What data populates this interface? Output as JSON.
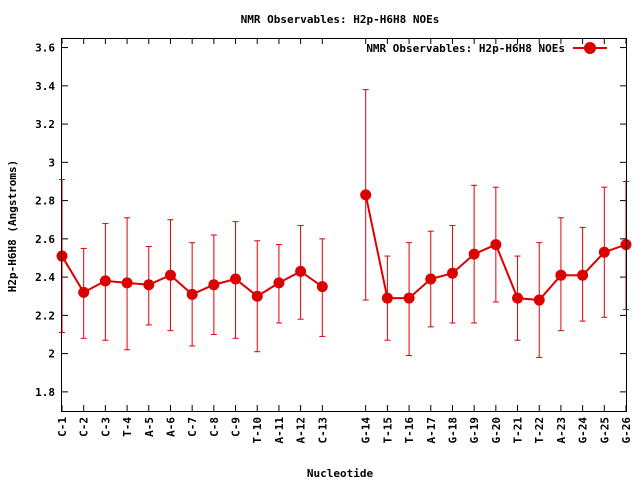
{
  "chart_data": {
    "type": "line",
    "title": "NMR Observables: H2p-H6H8 NOEs",
    "xlabel": "Nucleotide",
    "ylabel": "H2p-H6H8 (Angstroms)",
    "ylim": [
      1.7,
      3.65
    ],
    "yticks": [
      "1.8",
      "2",
      "2.2",
      "2.4",
      "2.6",
      "2.8",
      "3",
      "3.2",
      "3.4",
      "3.6"
    ],
    "legend_position": "top-right",
    "color": "#dd0000",
    "series": [
      {
        "name": "NMR Observables: H2p-H6H8 NOEs",
        "segments": [
          [
            {
              "x": 1,
              "label": "C-1",
              "y": 2.51,
              "lo": 2.11,
              "hi": 2.91
            },
            {
              "x": 2,
              "label": "C-2",
              "y": 2.32,
              "lo": 2.08,
              "hi": 2.55
            },
            {
              "x": 3,
              "label": "C-3",
              "y": 2.38,
              "lo": 2.07,
              "hi": 2.68
            },
            {
              "x": 4,
              "label": "T-4",
              "y": 2.37,
              "lo": 2.02,
              "hi": 2.71
            },
            {
              "x": 5,
              "label": "A-5",
              "y": 2.36,
              "lo": 2.15,
              "hi": 2.56
            },
            {
              "x": 6,
              "label": "A-6",
              "y": 2.41,
              "lo": 2.12,
              "hi": 2.7
            },
            {
              "x": 7,
              "label": "C-7",
              "y": 2.31,
              "lo": 2.04,
              "hi": 2.58
            },
            {
              "x": 8,
              "label": "C-8",
              "y": 2.36,
              "lo": 2.1,
              "hi": 2.62
            },
            {
              "x": 9,
              "label": "C-9",
              "y": 2.39,
              "lo": 2.08,
              "hi": 2.69
            },
            {
              "x": 10,
              "label": "T-10",
              "y": 2.3,
              "lo": 2.01,
              "hi": 2.59
            },
            {
              "x": 11,
              "label": "A-11",
              "y": 2.37,
              "lo": 2.16,
              "hi": 2.57
            },
            {
              "x": 12,
              "label": "A-12",
              "y": 2.43,
              "lo": 2.18,
              "hi": 2.67
            },
            {
              "x": 13,
              "label": "C-13",
              "y": 2.35,
              "lo": 2.09,
              "hi": 2.6
            }
          ],
          [
            {
              "x": 15,
              "label": "G-14",
              "y": 2.83,
              "lo": 2.28,
              "hi": 3.38
            },
            {
              "x": 16,
              "label": "T-15",
              "y": 2.29,
              "lo": 2.07,
              "hi": 2.51
            },
            {
              "x": 17,
              "label": "T-16",
              "y": 2.29,
              "lo": 1.99,
              "hi": 2.58
            },
            {
              "x": 18,
              "label": "A-17",
              "y": 2.39,
              "lo": 2.14,
              "hi": 2.64
            },
            {
              "x": 19,
              "label": "G-18",
              "y": 2.42,
              "lo": 2.16,
              "hi": 2.67
            },
            {
              "x": 20,
              "label": "G-19",
              "y": 2.52,
              "lo": 2.16,
              "hi": 2.88
            },
            {
              "x": 21,
              "label": "G-20",
              "y": 2.57,
              "lo": 2.27,
              "hi": 2.87
            },
            {
              "x": 22,
              "label": "T-21",
              "y": 2.29,
              "lo": 2.07,
              "hi": 2.51
            },
            {
              "x": 23,
              "label": "T-22",
              "y": 2.28,
              "lo": 1.98,
              "hi": 2.58
            },
            {
              "x": 24,
              "label": "A-23",
              "y": 2.41,
              "lo": 2.12,
              "hi": 2.71
            },
            {
              "x": 25,
              "label": "G-24",
              "y": 2.41,
              "lo": 2.17,
              "hi": 2.66
            },
            {
              "x": 26,
              "label": "G-25",
              "y": 2.53,
              "lo": 2.19,
              "hi": 2.87
            },
            {
              "x": 27,
              "label": "G-26",
              "y": 2.57,
              "lo": 2.23,
              "hi": 2.9
            }
          ]
        ]
      }
    ]
  }
}
